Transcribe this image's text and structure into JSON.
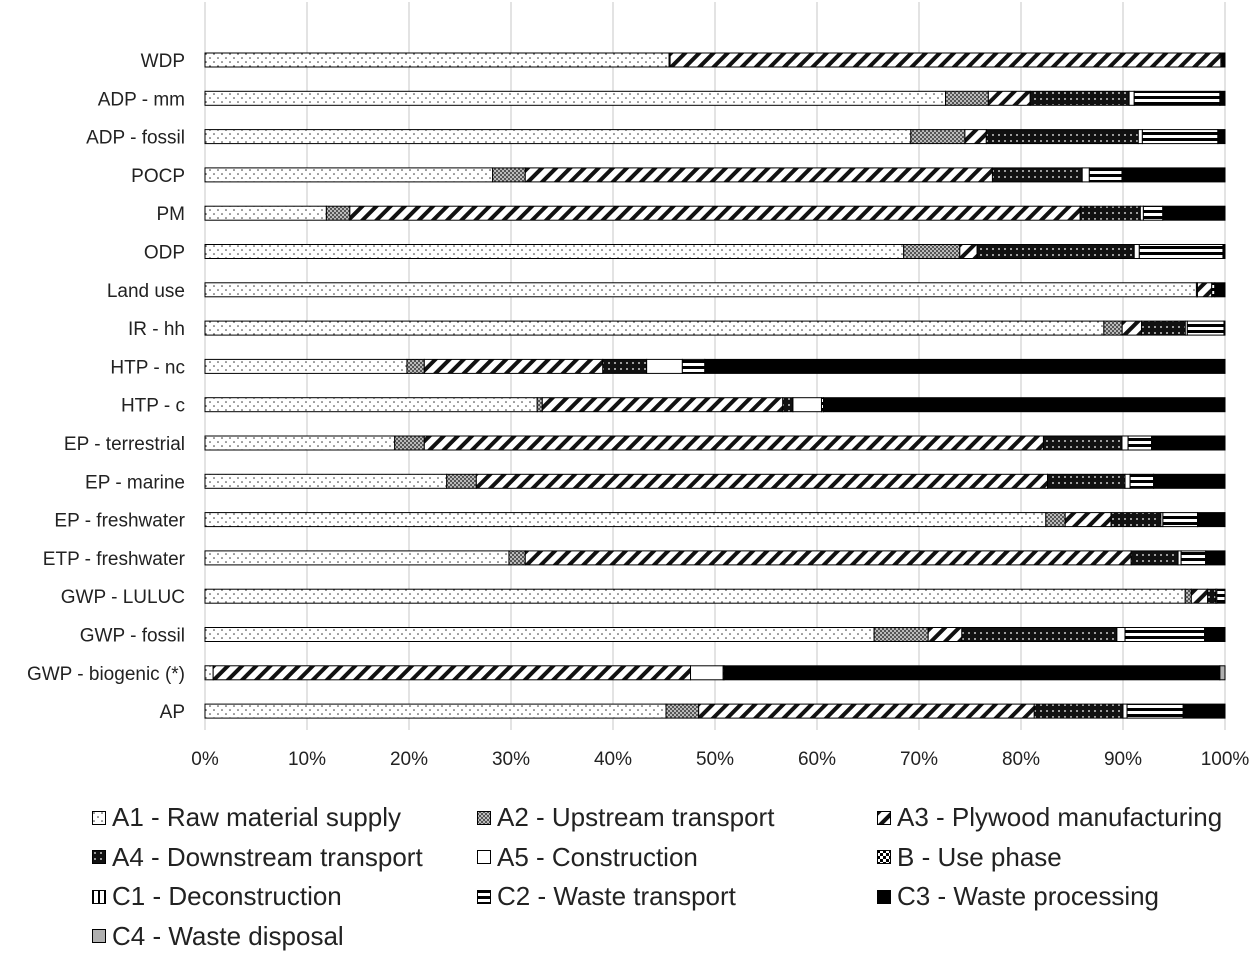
{
  "chart_data": {
    "type": "bar",
    "orientation": "horizontal",
    "stacked": "100%",
    "xlim": [
      0,
      100
    ],
    "xticks": [
      "0%",
      "10%",
      "20%",
      "30%",
      "40%",
      "50%",
      "60%",
      "70%",
      "80%",
      "90%",
      "100%"
    ],
    "grid": true,
    "legend_position": "bottom",
    "categories": [
      "WDP",
      "ADP - mm",
      "ADP - fossil",
      "POCP",
      "PM",
      "ODP",
      "Land use",
      "IR - hh",
      "HTP - nc",
      "HTP - c",
      "EP - terrestrial",
      "EP - marine",
      "EP - freshwater",
      "ETP - freshwater",
      "GWP - LULUC",
      "GWP - fossil",
      "GWP - biogenic (*)",
      "AP"
    ],
    "series": [
      {
        "name": "A1 - Raw material supply",
        "pattern": "dots",
        "values": [
          45.5,
          72.6,
          69.2,
          28.2,
          11.9,
          68.5,
          97.2,
          88.3,
          19.8,
          32.6,
          18.6,
          23.7,
          82.6,
          29.8,
          96.1,
          65.6,
          0.8,
          45.2
        ]
      },
      {
        "name": "A2 - Upstream transport",
        "pattern": "crosshatch",
        "values": [
          0.1,
          4.2,
          5.3,
          3.2,
          2.3,
          5.5,
          0.1,
          1.8,
          1.7,
          0.5,
          2.9,
          2.9,
          1.9,
          1.6,
          0.6,
          5.3,
          0.0,
          3.2
        ]
      },
      {
        "name": "A3 - Plywood manufacturing",
        "pattern": "diagonal",
        "values": [
          54.0,
          4.1,
          2.1,
          45.8,
          71.6,
          1.7,
          1.4,
          1.9,
          17.5,
          23.6,
          60.7,
          56.0,
          4.5,
          59.4,
          1.6,
          3.3,
          46.8,
          32.9
        ]
      },
      {
        "name": "A4 - Downstream transport",
        "pattern": "black-dots",
        "values": [
          0.0,
          9.7,
          14.9,
          8.8,
          5.9,
          15.4,
          0.0,
          4.3,
          4.3,
          1.0,
          7.7,
          7.6,
          4.9,
          4.6,
          0.8,
          15.2,
          0.0,
          8.7
        ]
      },
      {
        "name": "A5 - Construction",
        "pattern": "white",
        "values": [
          0.0,
          0.5,
          0.4,
          0.7,
          0.3,
          0.5,
          0.0,
          0.2,
          3.5,
          2.8,
          0.6,
          0.5,
          0.2,
          0.3,
          0.1,
          0.8,
          3.2,
          0.4
        ]
      },
      {
        "name": "B - Use phase",
        "pattern": "checker",
        "values": [
          0.0,
          0.0,
          0.0,
          0.0,
          0.0,
          0.0,
          0.0,
          0.0,
          0.0,
          0.0,
          0.0,
          0.0,
          0.0,
          0.0,
          0.0,
          0.0,
          0.0,
          0.0
        ]
      },
      {
        "name": "C1 - Deconstruction",
        "pattern": "vertical",
        "values": [
          0.0,
          0.0,
          0.0,
          0.0,
          0.0,
          0.0,
          0.0,
          0.0,
          0.0,
          0.0,
          0.0,
          0.0,
          0.0,
          0.0,
          0.0,
          0.0,
          0.0,
          0.0
        ]
      },
      {
        "name": "C2 - Waste transport",
        "pattern": "horizontal",
        "values": [
          0.1,
          8.4,
          7.4,
          3.2,
          1.9,
          8.2,
          0.3,
          3.6,
          2.2,
          0.2,
          2.3,
          2.3,
          3.4,
          2.4,
          0.8,
          7.8,
          0.1,
          5.5
        ]
      },
      {
        "name": "C3 - Waste processing",
        "pattern": "black",
        "values": [
          0.3,
          0.5,
          0.7,
          10.1,
          6.1,
          0.2,
          1.0,
          0.1,
          51.0,
          39.4,
          7.2,
          7.0,
          2.7,
          1.9,
          0.0,
          2.0,
          48.6,
          4.1
        ]
      },
      {
        "name": "C4 - Waste disposal",
        "pattern": "gray",
        "values": [
          0.0,
          0.0,
          0.0,
          0.0,
          0.0,
          0.0,
          0.0,
          0.0,
          0.0,
          0.0,
          0.0,
          0.0,
          0.0,
          0.0,
          0.0,
          0.0,
          0.5,
          0.0
        ]
      }
    ]
  }
}
